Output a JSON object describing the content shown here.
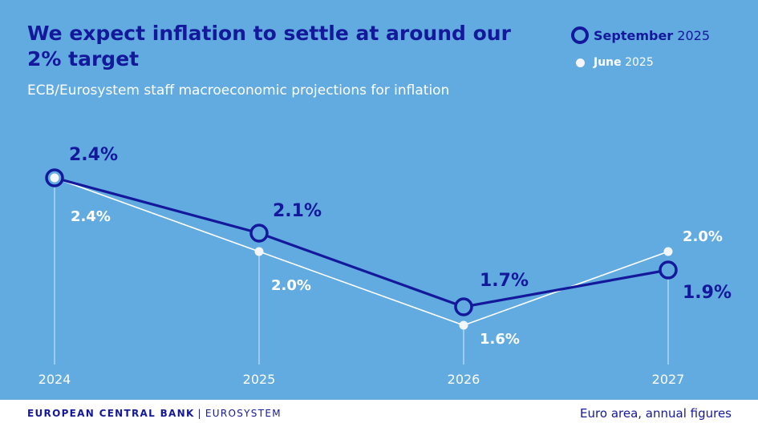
{
  "header": {
    "title": "We expect inflation to settle at around our 2% target",
    "subtitle": "ECB/Eurosystem staff macroeconomic projections for inflation"
  },
  "legend": {
    "items": [
      {
        "bold": "September",
        "rest": " 2025"
      },
      {
        "bold": "June",
        "rest": " 2025"
      }
    ]
  },
  "footer": {
    "brand": "EUROPEAN CENTRAL BANK",
    "separator": "|",
    "system": "EUROSYSTEM",
    "note": "Euro area, annual figures"
  },
  "colors": {
    "background": "#62abe1",
    "september": "#14189a",
    "june": "#ffffff"
  },
  "chart_data": {
    "type": "line",
    "title": "We expect inflation to settle at around our 2% target",
    "subtitle": "ECB/Eurosystem staff macroeconomic projections for inflation",
    "categories": [
      "2024",
      "2025",
      "2026",
      "2027"
    ],
    "series": [
      {
        "name": "September 2025",
        "values": [
          2.4,
          2.1,
          1.7,
          1.9
        ],
        "labels": [
          "2.4%",
          "2.1%",
          "1.7%",
          "1.9%"
        ]
      },
      {
        "name": "June 2025",
        "values": [
          2.4,
          2.0,
          1.6,
          2.0
        ],
        "labels": [
          "2.4%",
          "2.0%",
          "1.6%",
          "2.0%"
        ]
      }
    ],
    "xlabel": "",
    "ylabel": "",
    "grid": false,
    "legend": "top-right"
  }
}
